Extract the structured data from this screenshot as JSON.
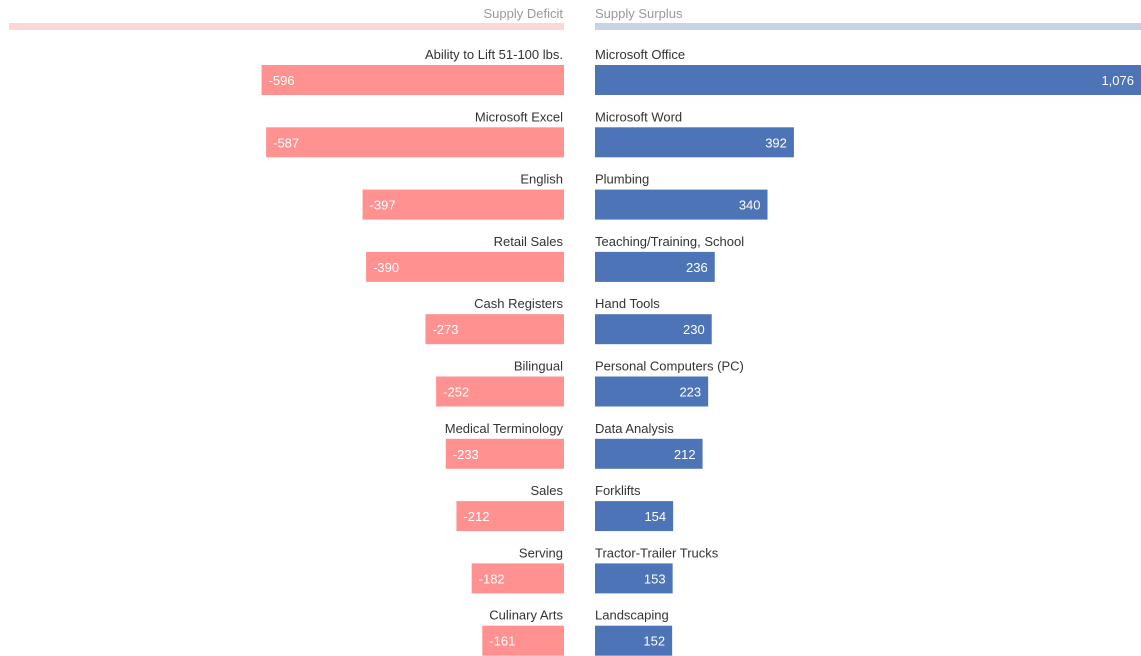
{
  "colors": {
    "deficit": "#ff9191",
    "surplus": "#4e74b8",
    "deficit_header_bar": "#fbd7d7",
    "surplus_header_bar": "#c9d3e6"
  },
  "chart_data": {
    "type": "bar",
    "layout": "diverging-horizontal",
    "left_panel": {
      "header": "Supply Deficit",
      "categories": [
        "Ability to Lift 51-100 lbs.",
        "Microsoft Excel",
        "English",
        "Retail Sales",
        "Cash Registers",
        "Bilingual",
        "Medical Terminology",
        "Sales",
        "Serving",
        "Culinary Arts"
      ],
      "values": [
        -596,
        -587,
        -397,
        -390,
        -273,
        -252,
        -233,
        -212,
        -182,
        -161
      ],
      "value_labels": [
        "-596",
        "-587",
        "-397",
        "-390",
        "-273",
        "-252",
        "-233",
        "-212",
        "-182",
        "-161"
      ]
    },
    "right_panel": {
      "header": "Supply Surplus",
      "categories": [
        "Microsoft Office",
        "Microsoft Word",
        "Plumbing",
        "Teaching/Training, School",
        "Hand Tools",
        "Personal Computers (PC)",
        "Data Analysis",
        "Forklifts",
        "Tractor-Trailer Trucks",
        "Landscaping"
      ],
      "values": [
        1076,
        392,
        340,
        236,
        230,
        223,
        212,
        154,
        153,
        152
      ],
      "value_labels": [
        "1,076",
        "392",
        "340",
        "236",
        "230",
        "223",
        "212",
        "154",
        "153",
        "152"
      ]
    }
  }
}
